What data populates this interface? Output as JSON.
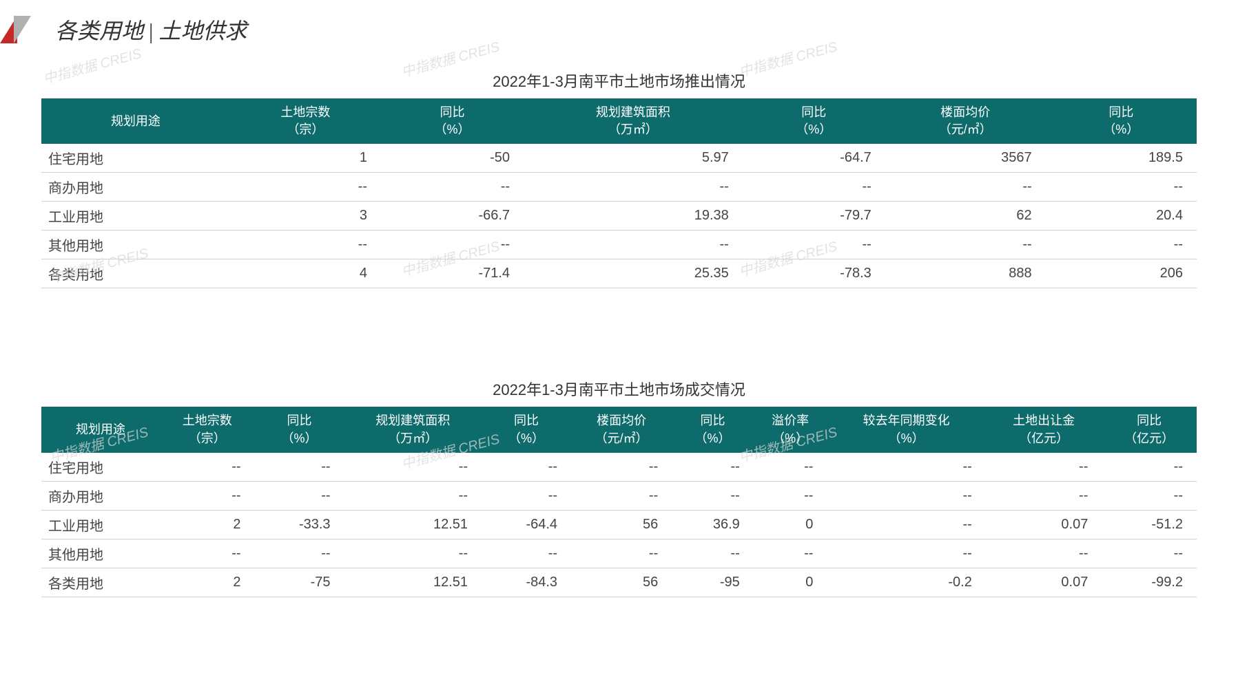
{
  "header": {
    "title_left": "各类用地",
    "title_right": "土地供求"
  },
  "watermark_text": "中指数据 CREIS",
  "table1": {
    "title": "2022年1-3月南平市土地市场推出情况",
    "header_bg_color": "#0d6b6b",
    "header_text_color": "#ffffff",
    "columns": [
      {
        "line1": "规划用途",
        "line2": ""
      },
      {
        "line1": "土地宗数",
        "line2": "（宗）"
      },
      {
        "line1": "同比",
        "line2": "（%）"
      },
      {
        "line1": "规划建筑面积",
        "line2": "（万㎡）"
      },
      {
        "line1": "同比",
        "line2": "（%）"
      },
      {
        "line1": "楼面均价",
        "line2": "（元/㎡）"
      },
      {
        "line1": "同比",
        "line2": "（%）"
      }
    ],
    "rows": [
      [
        "住宅用地",
        "1",
        "-50",
        "5.97",
        "-64.7",
        "3567",
        "189.5"
      ],
      [
        "商办用地",
        "--",
        "--",
        "--",
        "--",
        "--",
        "--"
      ],
      [
        "工业用地",
        "3",
        "-66.7",
        "19.38",
        "-79.7",
        "62",
        "20.4"
      ],
      [
        "其他用地",
        "--",
        "--",
        "--",
        "--",
        "--",
        "--"
      ],
      [
        "各类用地",
        "4",
        "-71.4",
        "25.35",
        "-78.3",
        "888",
        "206"
      ]
    ]
  },
  "table2": {
    "title": "2022年1-3月南平市土地市场成交情况",
    "header_bg_color": "#0d6b6b",
    "header_text_color": "#ffffff",
    "columns": [
      {
        "line1": "规划用途",
        "line2": ""
      },
      {
        "line1": "土地宗数",
        "line2": "（宗）"
      },
      {
        "line1": "同比",
        "line2": "（%）"
      },
      {
        "line1": "规划建筑面积",
        "line2": "（万㎡）"
      },
      {
        "line1": "同比",
        "line2": "（%）"
      },
      {
        "line1": "楼面均价",
        "line2": "（元/㎡）"
      },
      {
        "line1": "同比",
        "line2": "（%）"
      },
      {
        "line1": "溢价率",
        "line2": "（%）"
      },
      {
        "line1": "较去年同期变化",
        "line2": "（%）"
      },
      {
        "line1": "土地出让金",
        "line2": "（亿元）"
      },
      {
        "line1": "同比",
        "line2": "（亿元）"
      }
    ],
    "rows": [
      [
        "住宅用地",
        "--",
        "--",
        "--",
        "--",
        "--",
        "--",
        "--",
        "--",
        "--",
        "--"
      ],
      [
        "商办用地",
        "--",
        "--",
        "--",
        "--",
        "--",
        "--",
        "--",
        "--",
        "--",
        "--"
      ],
      [
        "工业用地",
        "2",
        "-33.3",
        "12.51",
        "-64.4",
        "56",
        "36.9",
        "0",
        "--",
        "0.07",
        "-51.2"
      ],
      [
        "其他用地",
        "--",
        "--",
        "--",
        "--",
        "--",
        "--",
        "--",
        "--",
        "--",
        "--"
      ],
      [
        "各类用地",
        "2",
        "-75",
        "12.51",
        "-84.3",
        "56",
        "-95",
        "0",
        "-0.2",
        "0.07",
        "-99.2"
      ]
    ]
  }
}
